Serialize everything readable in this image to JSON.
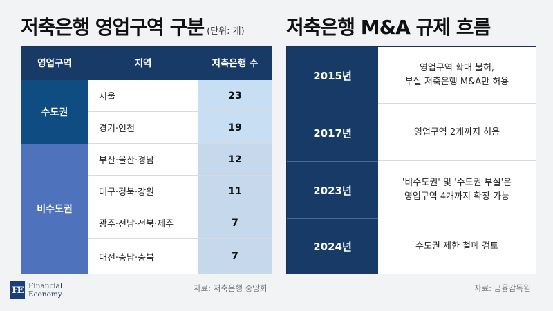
{
  "left": {
    "title": "저축은행 영업구역 구분",
    "unit": "(단위: 개)",
    "headers": [
      "영업구역",
      "지역",
      "저축은행 수"
    ],
    "groups": [
      {
        "name": "수도권",
        "color": "#0e4c82",
        "count_bg": "#c8dff3"
      },
      {
        "name": "비수도권",
        "color": "#4f72bc",
        "count_bg": "#c6d8ec"
      }
    ],
    "rows": [
      {
        "area": "서울",
        "count": "23"
      },
      {
        "area": "경기·인천",
        "count": "19"
      },
      {
        "area": "부산·울산·경남",
        "count": "12"
      },
      {
        "area": "대구·경북·강원",
        "count": "11"
      },
      {
        "area": "광주·전남·전북·제주",
        "count": "7"
      },
      {
        "area": "대전·충남·충북",
        "count": "7"
      }
    ],
    "source": "자료: 저축은행 중앙회"
  },
  "right": {
    "title": "저축은행 M&A 규제 흐름",
    "rows": [
      {
        "year": "2015년",
        "desc": "영업구역 확대 불허,\n부실 저축은행 M&A만 허용"
      },
      {
        "year": "2017년",
        "desc": "영업구역 2개까지 허용"
      },
      {
        "year": "2023년",
        "desc": "'비수도권' 및 '수도권 부실'은\n영업구역 4개까지 확장 가능"
      },
      {
        "year": "2024년",
        "desc": "수도권 제한 철폐 검토"
      }
    ],
    "source": "자료: 금융감독원"
  },
  "logo": {
    "mark": "FE",
    "line1": "Financial",
    "line2": "Economy"
  }
}
